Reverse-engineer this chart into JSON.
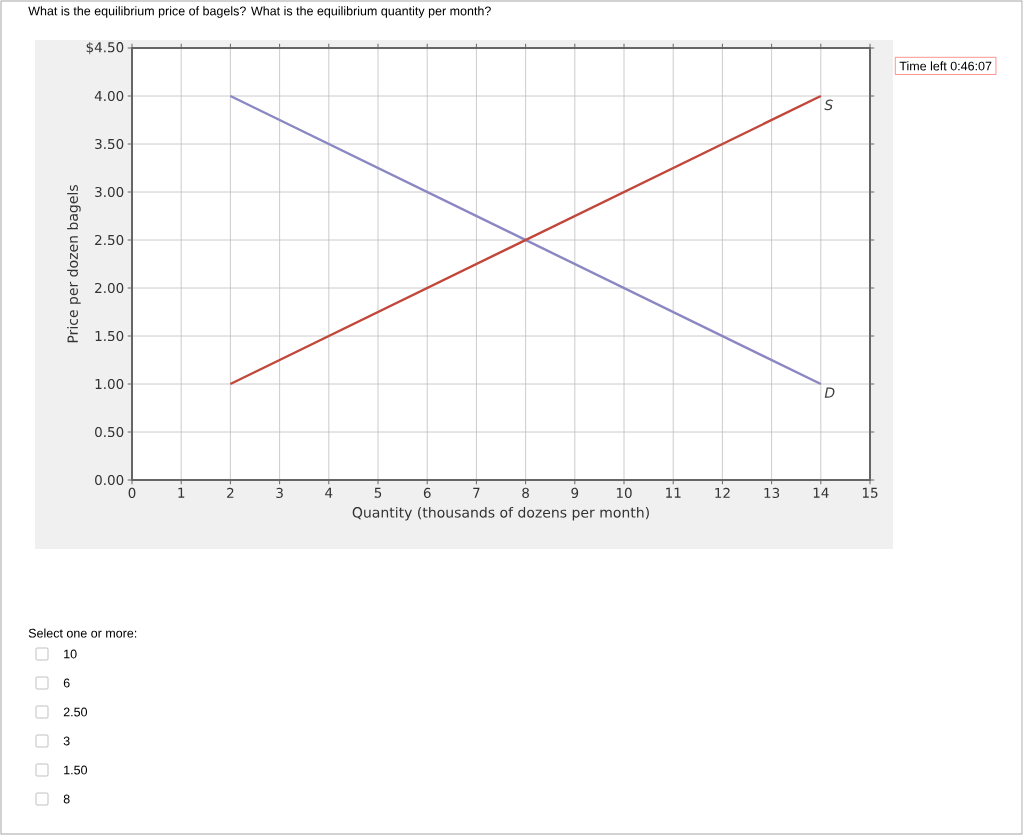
{
  "chart_data": {
    "type": "line",
    "title": "What is the equilibrium price of bagels? What is the equilibrium quantity per month?",
    "xlabel": "Quantity (thousands of dozens per month)",
    "ylabel": "Price per dozen bagels",
    "xlim": [
      0,
      15
    ],
    "ylim": [
      0,
      4.5
    ],
    "xticks": [
      0,
      1,
      2,
      3,
      4,
      5,
      6,
      7,
      8,
      9,
      10,
      11,
      12,
      13,
      14,
      15
    ],
    "yticks": [
      {
        "value": 0,
        "label": "0.00"
      },
      {
        "value": 0.5,
        "label": "0.50"
      },
      {
        "value": 1,
        "label": "1.00"
      },
      {
        "value": 1.5,
        "label": "1.50"
      },
      {
        "value": 2,
        "label": "2.00"
      },
      {
        "value": 2.5,
        "label": "2.50"
      },
      {
        "value": 3,
        "label": "3.00"
      },
      {
        "value": 3.5,
        "label": "3.50"
      },
      {
        "value": 4,
        "label": "4.00"
      },
      {
        "value": 4.5,
        "label": "$4.50"
      }
    ],
    "grid": true,
    "legend": false,
    "marker": "none",
    "line_style": "solid",
    "series": [
      {
        "name": "D",
        "color": "#8a87c2",
        "values": [
          4,
          1
        ]
      },
      {
        "name": "S",
        "color": "#c2473b",
        "values": [
          1,
          4
        ]
      }
    ],
    "x": [
      2,
      14
    ],
    "annotations": [
      "Time left 0:46:07",
      "Select one or more:",
      "10",
      "6",
      "2.50",
      "3",
      "1.50",
      "8"
    ]
  }
}
